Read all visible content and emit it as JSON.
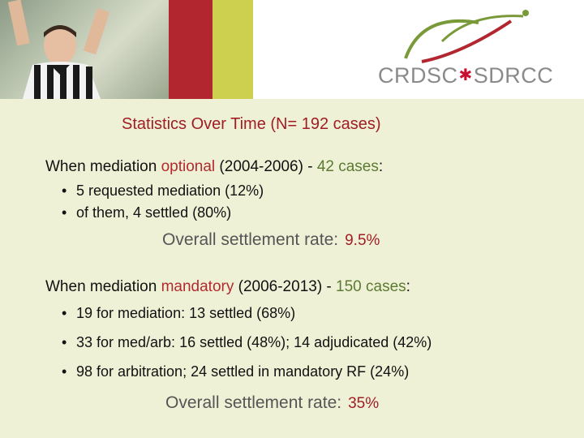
{
  "header": {
    "logo_text_left": "CRDSC",
    "logo_text_right": "SDRCC",
    "colors": {
      "red": "#b2262f",
      "olive": "#cdd04f"
    }
  },
  "title": "Statistics Over Time (N= 192 cases)",
  "optional_section": {
    "lead": "When mediation ",
    "keyword": "optional",
    "period": " (2004-2006)  -  ",
    "cases": "42 cases",
    "suffix": ":",
    "bullets": [
      "5 requested mediation (12%)",
      "of them, 4 settled (80%)"
    ],
    "overall_label": "Overall settlement rate:",
    "overall_value": "9.5%"
  },
  "mandatory_section": {
    "lead": "When mediation ",
    "keyword": "mandatory",
    "period": " (2006-2013) - ",
    "cases": "150 cases",
    "suffix": ":",
    "bullets": [
      "19 for mediation: 13 settled (68%)",
      "33 for med/arb: 16 settled (48%); 14 adjudicated (42%)",
      "98 for arbitration; 24 settled in mandatory RF (24%)"
    ],
    "overall_label": "Overall settlement rate:",
    "overall_value": "35%"
  }
}
